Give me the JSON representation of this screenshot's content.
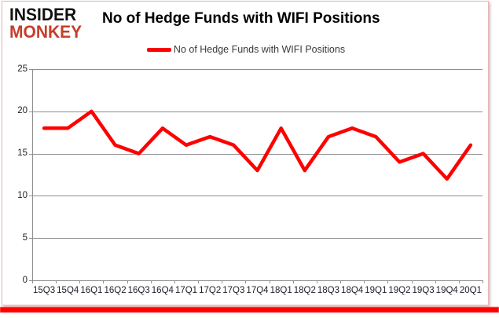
{
  "logo": {
    "line1": "INSIDER",
    "line2": "MONKEY"
  },
  "title": "No of Hedge Funds with WIFI Positions",
  "legend": {
    "label": "No of Hedge Funds with WIFI Positions"
  },
  "colors": {
    "series_red": "#ff0000",
    "logo_red": "#c63d2b",
    "grid_gray": "#8e8e8e",
    "border_pink": "#e7b6b4",
    "bottom_bar_red": "#ff0000"
  },
  "chart_data": {
    "type": "line",
    "title": "No of Hedge Funds with WIFI Positions",
    "categories": [
      "15Q3",
      "15Q4",
      "16Q1",
      "16Q2",
      "16Q3",
      "16Q4",
      "17Q1",
      "17Q2",
      "17Q3",
      "17Q4",
      "18Q1",
      "18Q2",
      "18Q3",
      "18Q4",
      "19Q1",
      "19Q2",
      "19Q3",
      "19Q4",
      "20Q1"
    ],
    "series": [
      {
        "name": "No of Hedge Funds with WIFI Positions",
        "color": "#ff0000",
        "values": [
          18,
          18,
          20,
          16,
          15,
          18,
          16,
          17,
          16,
          13,
          18,
          13,
          17,
          18,
          17,
          14,
          15,
          12,
          16
        ]
      }
    ],
    "xlabel": "",
    "ylabel": "",
    "ylim": [
      0,
      25
    ],
    "yticks": [
      0,
      5,
      10,
      15,
      20,
      25
    ],
    "grid": true,
    "legend_position": "top-center"
  }
}
